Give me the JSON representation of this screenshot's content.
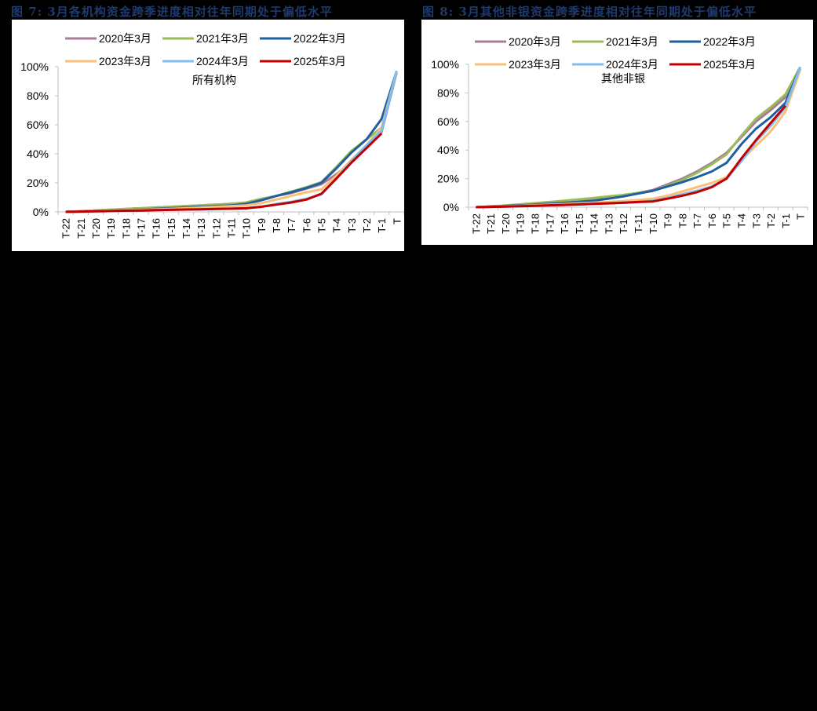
{
  "figures": [
    {
      "title": "图 7: 3月各机构资金跨季进度相对往年同期处于偏低水平",
      "subtitle": "所有机构"
    },
    {
      "title": "图 8: 3月其他非银资金跨季进度相对往年同期处于偏低水平",
      "subtitle": "其他非银"
    }
  ],
  "legend": [
    "2020年3月",
    "2021年3月",
    "2022年3月",
    "2023年3月",
    "2024年3月",
    "2025年3月"
  ],
  "colors": {
    "2020年3月": "#a67c96",
    "2021年3月": "#9bbb59",
    "2022年3月": "#1f5fa0",
    "2023年3月": "#fac079",
    "2024年3月": "#7fbfee",
    "2025年3月": "#c00000",
    "title": "#1f3a6e"
  },
  "chart_data": [
    {
      "type": "line",
      "title": "所有机构",
      "xlabel": "",
      "ylabel": "",
      "ylim": [
        0,
        1.0
      ],
      "yticks": [
        "0%",
        "20%",
        "40%",
        "60%",
        "80%",
        "100%"
      ],
      "legend_position": "top",
      "grid": false,
      "categories": [
        "T-22",
        "T-21",
        "T-20",
        "T-19",
        "T-18",
        "T-17",
        "T-16",
        "T-15",
        "T-14",
        "T-13",
        "T-12",
        "T-11",
        "T-10",
        "T-9",
        "T-8",
        "T-7",
        "T-6",
        "T-5",
        "T-4",
        "T-3",
        "T-2",
        "T-1",
        "T"
      ],
      "series": [
        {
          "name": "2020年3月",
          "values": [
            0.0,
            0.005,
            0.01,
            0.015,
            0.02,
            0.025,
            0.03,
            0.035,
            0.04,
            0.045,
            0.05,
            0.055,
            0.06,
            0.08,
            0.11,
            0.13,
            0.16,
            0.19,
            0.26,
            0.34,
            0.44,
            0.55,
            0.96
          ]
        },
        {
          "name": "2021年3月",
          "values": [
            0.0,
            0.005,
            0.01,
            0.015,
            0.02,
            0.025,
            0.03,
            0.035,
            0.04,
            0.045,
            0.05,
            0.055,
            0.065,
            0.09,
            0.11,
            0.14,
            0.17,
            0.205,
            0.31,
            0.42,
            0.5,
            0.58,
            0.97
          ]
        },
        {
          "name": "2022年3月",
          "values": [
            0.0,
            0.003,
            0.006,
            0.01,
            0.013,
            0.017,
            0.021,
            0.025,
            0.03,
            0.035,
            0.04,
            0.045,
            0.055,
            0.08,
            0.11,
            0.135,
            0.165,
            0.2,
            0.3,
            0.41,
            0.5,
            0.64,
            0.97
          ]
        },
        {
          "name": "2023年3月",
          "values": [
            0.0,
            0.003,
            0.006,
            0.009,
            0.012,
            0.015,
            0.018,
            0.021,
            0.025,
            0.03,
            0.035,
            0.04,
            0.045,
            0.06,
            0.085,
            0.11,
            0.135,
            0.155,
            0.25,
            0.36,
            0.46,
            0.58,
            0.97
          ]
        },
        {
          "name": "2024年3月",
          "values": [
            0.0,
            0.002,
            0.004,
            0.006,
            0.008,
            0.01,
            0.012,
            0.014,
            0.016,
            0.018,
            0.02,
            0.022,
            0.025,
            0.035,
            0.055,
            0.07,
            0.09,
            0.12,
            0.23,
            0.35,
            0.46,
            0.56,
            0.97
          ]
        },
        {
          "name": "2025年3月",
          "values": [
            0.0,
            0.002,
            0.004,
            0.006,
            0.008,
            0.01,
            0.012,
            0.014,
            0.016,
            0.018,
            0.02,
            0.022,
            0.025,
            0.035,
            0.05,
            0.065,
            0.085,
            0.125,
            0.23,
            0.34,
            0.44,
            0.54,
            null
          ]
        }
      ]
    },
    {
      "type": "line",
      "title": "其他非银",
      "xlabel": "",
      "ylabel": "",
      "ylim": [
        0,
        1.0
      ],
      "yticks": [
        "0%",
        "20%",
        "40%",
        "60%",
        "80%",
        "100%"
      ],
      "legend_position": "top",
      "grid": false,
      "categories": [
        "T-22",
        "T-21",
        "T-20",
        "T-19",
        "T-18",
        "T-17",
        "T-16",
        "T-15",
        "T-14",
        "T-13",
        "T-12",
        "T-11",
        "T-10",
        "T-9",
        "T-8",
        "T-7",
        "T-6",
        "T-5",
        "T-4",
        "T-3",
        "T-2",
        "T-1",
        "T"
      ],
      "series": [
        {
          "name": "2020年3月",
          "values": [
            0.0,
            0.005,
            0.01,
            0.015,
            0.02,
            0.03,
            0.04,
            0.05,
            0.06,
            0.07,
            0.085,
            0.1,
            0.12,
            0.16,
            0.2,
            0.25,
            0.31,
            0.38,
            0.49,
            0.6,
            0.68,
            0.77,
            0.97
          ]
        },
        {
          "name": "2021年3月",
          "values": [
            0.0,
            0.006,
            0.012,
            0.02,
            0.028,
            0.036,
            0.045,
            0.055,
            0.065,
            0.075,
            0.085,
            0.1,
            0.115,
            0.15,
            0.19,
            0.24,
            0.3,
            0.37,
            0.5,
            0.62,
            0.7,
            0.79,
            0.98
          ]
        },
        {
          "name": "2022年3月",
          "values": [
            0.0,
            0.004,
            0.008,
            0.013,
            0.018,
            0.024,
            0.03,
            0.037,
            0.045,
            0.06,
            0.075,
            0.095,
            0.115,
            0.145,
            0.175,
            0.21,
            0.25,
            0.31,
            0.44,
            0.55,
            0.63,
            0.73,
            0.98
          ]
        },
        {
          "name": "2023年3月",
          "values": [
            0.0,
            0.003,
            0.006,
            0.01,
            0.014,
            0.018,
            0.022,
            0.027,
            0.032,
            0.037,
            0.043,
            0.05,
            0.06,
            0.08,
            0.11,
            0.14,
            0.17,
            0.21,
            0.33,
            0.43,
            0.53,
            0.67,
            0.96
          ]
        },
        {
          "name": "2024年3月",
          "values": [
            0.0,
            0.002,
            0.004,
            0.007,
            0.01,
            0.013,
            0.016,
            0.02,
            0.024,
            0.028,
            0.032,
            0.037,
            0.045,
            0.065,
            0.09,
            0.115,
            0.145,
            0.2,
            0.32,
            0.46,
            0.57,
            0.7,
            0.98
          ]
        },
        {
          "name": "2025年3月",
          "values": [
            0.0,
            0.002,
            0.004,
            0.007,
            0.01,
            0.013,
            0.016,
            0.019,
            0.023,
            0.027,
            0.031,
            0.036,
            0.04,
            0.06,
            0.08,
            0.105,
            0.14,
            0.2,
            0.34,
            0.47,
            0.59,
            0.71,
            null
          ]
        }
      ]
    }
  ]
}
